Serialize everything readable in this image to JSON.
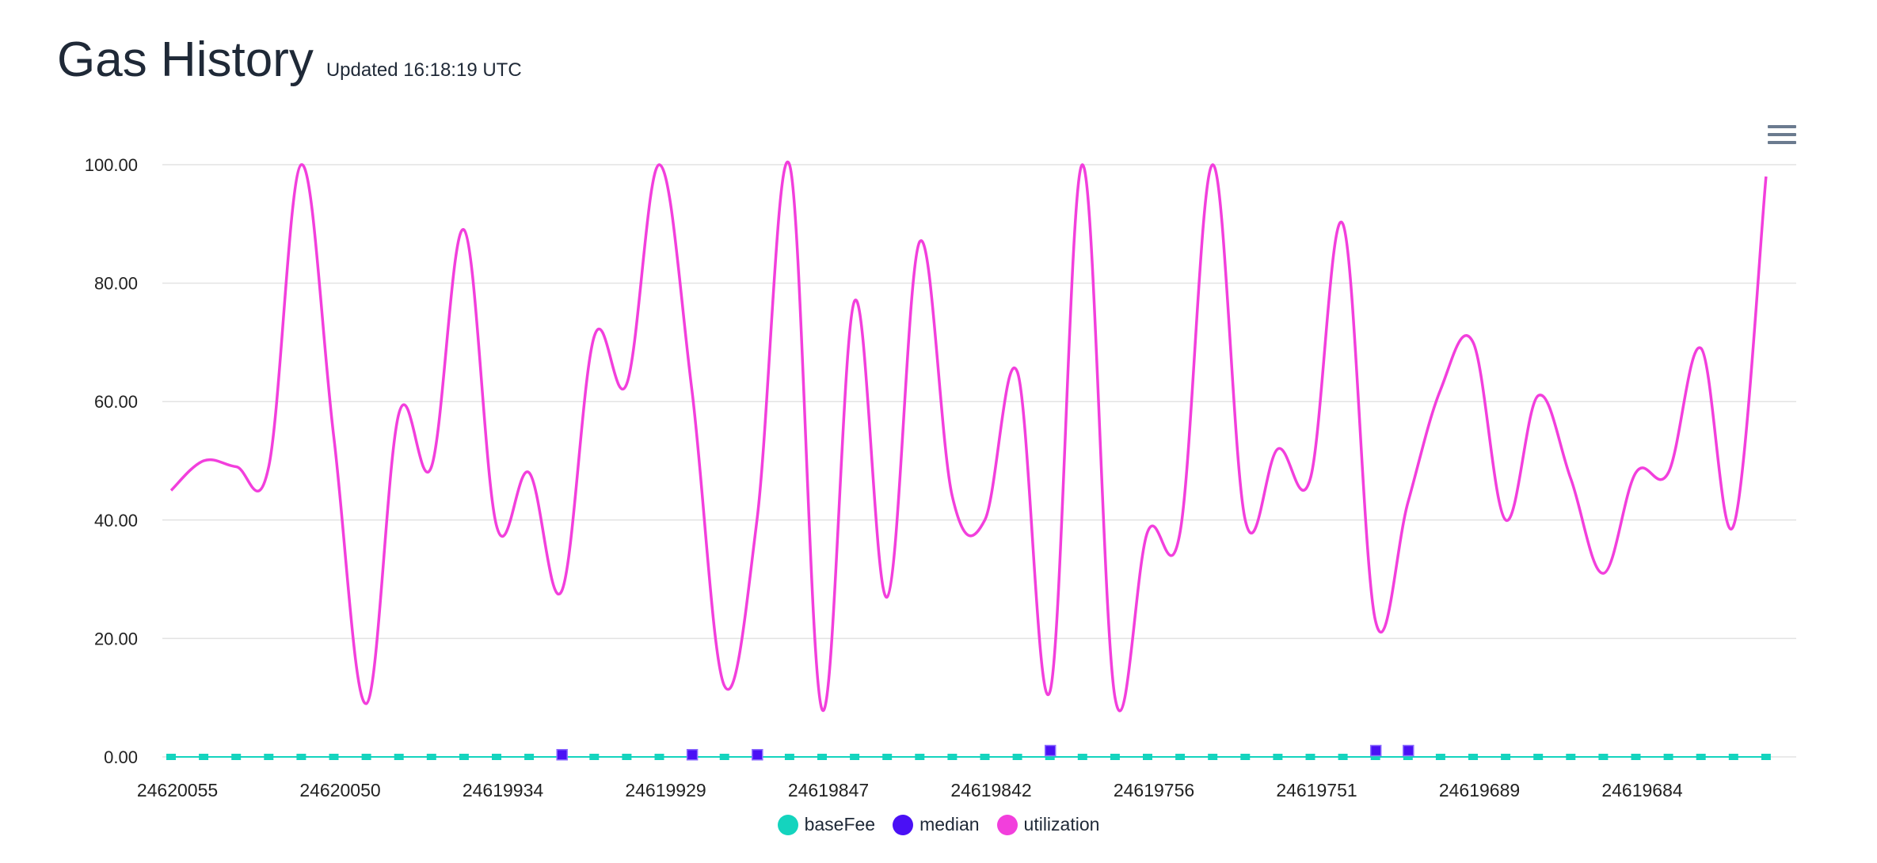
{
  "header": {
    "title": "Gas History",
    "updated": "Updated 16:18:19 UTC"
  },
  "menu": {
    "icon": "hamburger-menu-icon"
  },
  "colors": {
    "baseFee": "#14d4be",
    "median": "#4a10f5",
    "utilization": "#f23fdc",
    "grid": "#e3e3e3",
    "text": "#222222"
  },
  "chart_data": {
    "type": "line",
    "title": "Gas History",
    "ylim": [
      0,
      100
    ],
    "yticks": [
      "0.00",
      "20.00",
      "40.00",
      "60.00",
      "80.00",
      "100.00"
    ],
    "xtick_labels": [
      "24620055",
      "24620050",
      "24619934",
      "24619929",
      "24619847",
      "24619842",
      "24619756",
      "24619751",
      "24619689",
      "24619684"
    ],
    "point_count": 50,
    "grid": true,
    "legend_position": "bottom-center",
    "series": [
      {
        "name": "baseFee",
        "marker": "square",
        "values": [
          0,
          0,
          0,
          0,
          0,
          0,
          0,
          0,
          0,
          0,
          0,
          0,
          0,
          0,
          0,
          0,
          0,
          0,
          0,
          0,
          0,
          0,
          0,
          0,
          0,
          0,
          0,
          0,
          0,
          0,
          0,
          0,
          0,
          0,
          0,
          0,
          0,
          0,
          0,
          0,
          0,
          0,
          0,
          0,
          0,
          0,
          0,
          0,
          0,
          0
        ]
      },
      {
        "name": "median",
        "marker": "square",
        "values": [
          null,
          null,
          null,
          null,
          null,
          null,
          null,
          null,
          null,
          null,
          null,
          null,
          0.3,
          null,
          null,
          null,
          0.3,
          null,
          0.3,
          null,
          null,
          null,
          null,
          null,
          null,
          null,
          null,
          1.0,
          null,
          null,
          null,
          null,
          null,
          null,
          null,
          null,
          null,
          1.0,
          1.0,
          null,
          null,
          null,
          null,
          null,
          null,
          null,
          null,
          null,
          null,
          null
        ]
      },
      {
        "name": "utilization",
        "values": [
          45,
          50,
          49,
          49,
          100,
          54,
          9,
          58,
          49,
          89,
          39,
          48,
          28,
          71,
          63,
          100,
          62,
          12,
          40,
          100,
          8,
          77,
          27,
          87,
          44,
          40,
          65,
          11,
          100,
          10,
          38,
          38,
          100,
          40,
          52,
          47,
          90,
          23,
          43,
          62,
          70,
          40,
          61,
          47,
          31,
          48,
          48,
          69,
          39,
          98
        ]
      }
    ]
  }
}
